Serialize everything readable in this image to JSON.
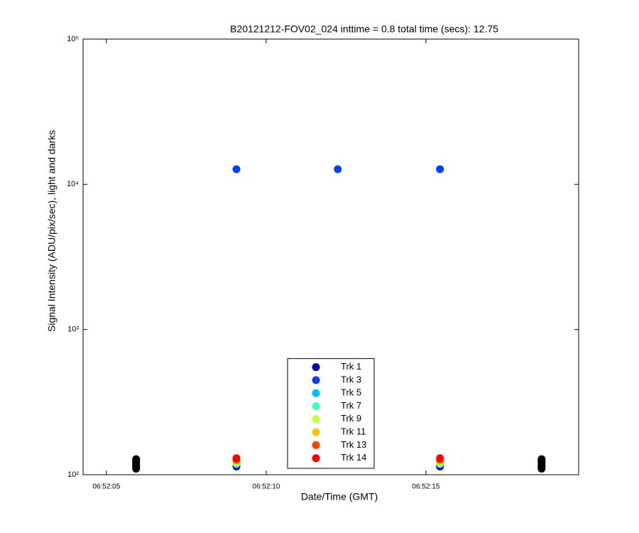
{
  "chart_data": {
    "type": "scatter",
    "title": "B20121212-FOV02_024 inttime = 0.8 total time (secs): 12.75",
    "xlabel": "Date/Time (GMT)",
    "ylabel": "Signal Intensity (ADU/pix/sec), light and darks",
    "ylog": true,
    "xlim": [
      4.27,
      19.78
    ],
    "xticks": [
      {
        "value": 5,
        "label": "06:52:05"
      },
      {
        "value": 10,
        "label": "06:52:10"
      },
      {
        "value": 15,
        "label": "06:52:15"
      }
    ],
    "ylim": [
      100,
      100000
    ],
    "yticks": [
      {
        "value": 100,
        "label": "10²"
      },
      {
        "value": 1000,
        "label": "10³"
      },
      {
        "value": 10000,
        "label": "10⁴"
      },
      {
        "value": 100000,
        "label": "10⁵"
      }
    ],
    "legend": "south",
    "series": [
      {
        "color": "#000000",
        "x": [
          5.93,
          5.93,
          5.93,
          5.93,
          5.93,
          5.93,
          5.93,
          18.62,
          18.62,
          18.62,
          18.62,
          18.62,
          18.62,
          18.62
        ],
        "values": [
          110,
          113,
          116,
          119,
          122,
          125,
          128,
          110,
          113,
          116,
          119,
          122,
          125,
          128
        ]
      },
      {
        "name": "Trk 1",
        "color": "#0000b0",
        "x": [
          9.07,
          15.44
        ],
        "values": [
          114,
          114
        ]
      },
      {
        "name": "Trk 3",
        "color": "#0040ff",
        "x": [
          9.07,
          12.24,
          15.44
        ],
        "values": [
          12700,
          12700,
          12700
        ]
      },
      {
        "name": "Trk 5",
        "color": "#00c0ff",
        "x": [
          9.07,
          15.44
        ],
        "values": [
          118,
          118
        ]
      },
      {
        "name": "Trk 7",
        "color": "#40ffc0",
        "x": [
          9.07,
          15.44
        ],
        "values": [
          120,
          120
        ]
      },
      {
        "name": "Trk 9",
        "color": "#c0ff40",
        "x": [
          9.07,
          15.44
        ],
        "values": [
          122,
          122
        ]
      },
      {
        "name": "Trk 11",
        "color": "#ffc000",
        "x": [
          9.07,
          15.44
        ],
        "values": [
          124,
          124
        ]
      },
      {
        "name": "Trk 13",
        "color": "#ff4000",
        "x": [
          9.07,
          15.44
        ],
        "values": [
          127,
          127
        ]
      },
      {
        "name": "Trk 14",
        "color": "#ff0000",
        "x": [
          9.07,
          15.44
        ],
        "values": [
          130,
          130
        ]
      }
    ]
  }
}
